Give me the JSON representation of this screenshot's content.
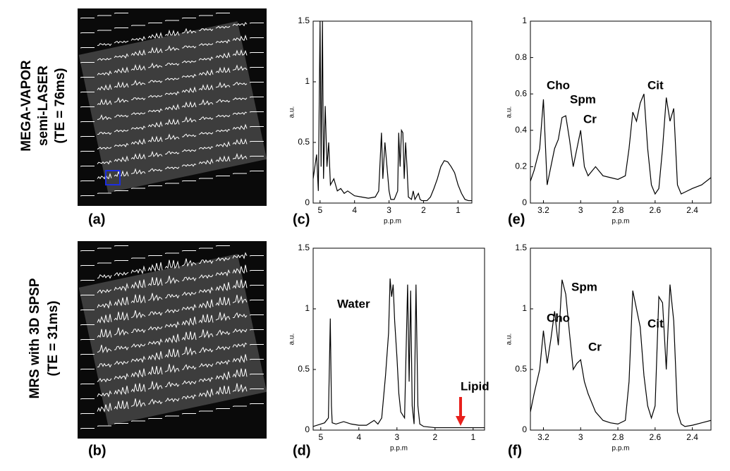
{
  "figure": {
    "row_labels": [
      [
        "MEGA-VAPOR",
        "semi-LASER",
        "(TE = 76ms)"
      ],
      [
        "MRS with 3D SPSP",
        "(TE = 31ms)"
      ]
    ],
    "image_labels": [
      "(a)",
      "(b)"
    ]
  },
  "chart_data": [
    {
      "type": "line",
      "panel_label": "(c)",
      "xlabel": "p.p.m",
      "ylabel": "a.u.",
      "xlim": [
        5.2,
        0.6
      ],
      "xticks": [
        5,
        4,
        3,
        2,
        1
      ],
      "ylim": [
        0,
        1.5
      ],
      "yticks": [
        0,
        0.5,
        1,
        1.5
      ],
      "x": [
        5.2,
        5.1,
        5.05,
        5.0,
        4.97,
        4.93,
        4.9,
        4.85,
        4.8,
        4.75,
        4.7,
        4.6,
        4.5,
        4.4,
        4.3,
        4.2,
        4.0,
        3.8,
        3.6,
        3.4,
        3.3,
        3.22,
        3.18,
        3.12,
        3.06,
        3.0,
        2.95,
        2.85,
        2.75,
        2.72,
        2.68,
        2.64,
        2.6,
        2.56,
        2.52,
        2.48,
        2.44,
        2.35,
        2.3,
        2.25,
        2.15,
        2.1,
        2.05,
        1.9,
        1.8,
        1.7,
        1.6,
        1.5,
        1.4,
        1.3,
        1.2,
        1.1,
        1.0,
        0.9,
        0.8,
        0.7,
        0.6
      ],
      "series": [
        {
          "color": "#000000",
          "values": [
            0.2,
            0.4,
            0.1,
            1.5,
            0.3,
            1.5,
            0.2,
            0.8,
            0.3,
            0.5,
            0.15,
            0.2,
            0.1,
            0.12,
            0.08,
            0.1,
            0.06,
            0.05,
            0.04,
            0.05,
            0.1,
            0.58,
            0.2,
            0.5,
            0.3,
            0.1,
            0.03,
            0.03,
            0.1,
            0.58,
            0.3,
            0.6,
            0.58,
            0.2,
            0.5,
            0.3,
            0.05,
            0.03,
            0.1,
            0.03,
            0.08,
            0.03,
            0.02,
            0.02,
            0.05,
            0.12,
            0.2,
            0.3,
            0.35,
            0.34,
            0.3,
            0.25,
            0.15,
            0.08,
            0.03,
            0.02,
            0.02
          ]
        }
      ],
      "annotations": []
    },
    {
      "type": "line",
      "panel_label": "(e)",
      "xlabel": "p.p.m",
      "ylabel": "a.u.",
      "xlim": [
        3.27,
        2.3
      ],
      "xticks": [
        3.2,
        3,
        2.8,
        2.6,
        2.4
      ],
      "ylim": [
        0,
        1
      ],
      "yticks": [
        0,
        0.2,
        0.4,
        0.6,
        0.8,
        1
      ],
      "x": [
        3.27,
        3.25,
        3.22,
        3.2,
        3.18,
        3.16,
        3.14,
        3.12,
        3.1,
        3.08,
        3.06,
        3.04,
        3.02,
        3.0,
        2.98,
        2.96,
        2.92,
        2.88,
        2.84,
        2.8,
        2.76,
        2.74,
        2.72,
        2.7,
        2.68,
        2.66,
        2.64,
        2.62,
        2.6,
        2.58,
        2.56,
        2.54,
        2.52,
        2.5,
        2.48,
        2.46,
        2.44,
        2.4,
        2.35,
        2.3
      ],
      "series": [
        {
          "color": "#000000",
          "values": [
            0.12,
            0.18,
            0.3,
            0.57,
            0.1,
            0.2,
            0.3,
            0.35,
            0.47,
            0.48,
            0.35,
            0.2,
            0.3,
            0.4,
            0.2,
            0.15,
            0.2,
            0.15,
            0.14,
            0.13,
            0.15,
            0.3,
            0.5,
            0.45,
            0.55,
            0.6,
            0.3,
            0.1,
            0.05,
            0.08,
            0.3,
            0.58,
            0.45,
            0.52,
            0.1,
            0.05,
            0.06,
            0.08,
            0.1,
            0.14
          ]
        }
      ],
      "annotations": [
        "Cho",
        "Spm",
        "Cr",
        "Cit"
      ]
    },
    {
      "type": "line",
      "panel_label": "(d)",
      "xlabel": "p.p.m",
      "ylabel": "a.u.",
      "xlim": [
        5.2,
        0.7
      ],
      "xticks": [
        5,
        4,
        3,
        2,
        1
      ],
      "ylim": [
        0,
        1.5
      ],
      "yticks": [
        0,
        0.5,
        1,
        1.5
      ],
      "x": [
        5.2,
        5.0,
        4.9,
        4.8,
        4.75,
        4.72,
        4.7,
        4.6,
        4.4,
        4.2,
        4.0,
        3.8,
        3.6,
        3.5,
        3.4,
        3.3,
        3.22,
        3.18,
        3.14,
        3.1,
        3.06,
        3.0,
        2.95,
        2.9,
        2.8,
        2.72,
        2.68,
        2.64,
        2.6,
        2.55,
        2.5,
        2.45,
        2.4,
        2.3,
        2.0,
        1.5,
        1.0,
        0.7
      ],
      "series": [
        {
          "color": "#000000",
          "values": [
            0.03,
            0.05,
            0.06,
            0.1,
            0.92,
            0.2,
            0.06,
            0.05,
            0.07,
            0.05,
            0.04,
            0.04,
            0.08,
            0.05,
            0.1,
            0.45,
            0.8,
            1.25,
            1.1,
            1.2,
            0.9,
            0.6,
            0.3,
            0.15,
            0.1,
            1.2,
            0.4,
            1.15,
            0.2,
            0.05,
            1.2,
            0.2,
            0.05,
            0.03,
            0.02,
            0.02,
            0.02,
            0.02
          ]
        }
      ],
      "annotations": [
        "Water",
        "Lipid"
      ],
      "arrow_color": "#e8201c"
    },
    {
      "type": "line",
      "panel_label": "(f)",
      "xlabel": "p.p.m",
      "ylabel": "a.u.",
      "xlim": [
        3.27,
        2.3
      ],
      "xticks": [
        3.2,
        3,
        2.8,
        2.6,
        2.4
      ],
      "ylim": [
        0,
        1.5
      ],
      "yticks": [
        0,
        0.5,
        1,
        1.5
      ],
      "x": [
        3.27,
        3.25,
        3.22,
        3.2,
        3.18,
        3.16,
        3.14,
        3.12,
        3.1,
        3.08,
        3.06,
        3.04,
        3.02,
        3.0,
        2.98,
        2.96,
        2.92,
        2.88,
        2.84,
        2.8,
        2.76,
        2.74,
        2.72,
        2.7,
        2.68,
        2.66,
        2.64,
        2.62,
        2.6,
        2.58,
        2.56,
        2.54,
        2.52,
        2.5,
        2.48,
        2.46,
        2.44,
        2.4,
        2.35,
        2.3
      ],
      "series": [
        {
          "color": "#000000",
          "values": [
            0.15,
            0.3,
            0.5,
            0.82,
            0.55,
            0.75,
            0.98,
            0.7,
            1.24,
            1.12,
            0.8,
            0.5,
            0.55,
            0.58,
            0.4,
            0.3,
            0.15,
            0.08,
            0.06,
            0.05,
            0.08,
            0.4,
            1.15,
            1.0,
            0.85,
            0.45,
            0.2,
            0.1,
            0.2,
            1.1,
            1.05,
            0.5,
            1.2,
            0.9,
            0.15,
            0.05,
            0.03,
            0.04,
            0.06,
            0.08
          ]
        }
      ],
      "annotations": [
        "Cho",
        "Spm",
        "Cr",
        "Cit"
      ]
    }
  ]
}
